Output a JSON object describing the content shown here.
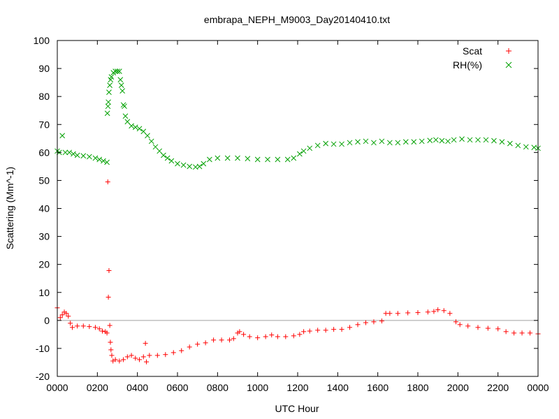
{
  "chart_data": {
    "type": "scatter",
    "title": "embrapa_NEPH_M9003_Day20140410.txt",
    "xlabel": "UTC Hour",
    "ylabel": "Scattering (Mm^-1)",
    "xlim": [
      0,
      2400
    ],
    "ylim": [
      -20,
      100
    ],
    "x_tick_labels": [
      "0000",
      "0200",
      "0400",
      "0600",
      "0800",
      "1000",
      "1200",
      "1400",
      "1600",
      "1800",
      "2000",
      "2200",
      "0000"
    ],
    "y_tick_labels": [
      "-20",
      "-10",
      "0",
      "10",
      "20",
      "30",
      "40",
      "50",
      "60",
      "70",
      "80",
      "90",
      "100"
    ],
    "grid": false,
    "zero_line": true,
    "legend_position": "top-right",
    "series": [
      {
        "name": "Scat",
        "marker": "+",
        "color": "#ff0000",
        "points": [
          [
            0,
            4.5
          ],
          [
            15,
            1
          ],
          [
            25,
            2
          ],
          [
            35,
            3
          ],
          [
            45,
            2.5
          ],
          [
            55,
            1.5
          ],
          [
            65,
            -1
          ],
          [
            75,
            -2.5
          ],
          [
            100,
            -2
          ],
          [
            130,
            -2
          ],
          [
            160,
            -2.2
          ],
          [
            190,
            -2.5
          ],
          [
            210,
            -3
          ],
          [
            225,
            -3.8
          ],
          [
            240,
            -4
          ],
          [
            248,
            -4.5
          ],
          [
            252,
            49.5
          ],
          [
            255,
            8.3
          ],
          [
            258,
            17.8
          ],
          [
            262,
            -1.8
          ],
          [
            265,
            -7.8
          ],
          [
            268,
            -10.5
          ],
          [
            272,
            -12.5
          ],
          [
            278,
            -14.5
          ],
          [
            290,
            -14
          ],
          [
            310,
            -14.5
          ],
          [
            330,
            -14
          ],
          [
            350,
            -13
          ],
          [
            370,
            -12.5
          ],
          [
            390,
            -13.5
          ],
          [
            410,
            -14
          ],
          [
            430,
            -13
          ],
          [
            440,
            -8.2
          ],
          [
            445,
            -14.8
          ],
          [
            460,
            -12.5
          ],
          [
            500,
            -12.5
          ],
          [
            540,
            -12.2
          ],
          [
            580,
            -11.5
          ],
          [
            620,
            -10.8
          ],
          [
            660,
            -9.5
          ],
          [
            700,
            -8.5
          ],
          [
            740,
            -8
          ],
          [
            780,
            -7
          ],
          [
            820,
            -7
          ],
          [
            860,
            -7
          ],
          [
            880,
            -6.5
          ],
          [
            900,
            -4.5
          ],
          [
            910,
            -4
          ],
          [
            930,
            -5
          ],
          [
            960,
            -5.8
          ],
          [
            1000,
            -6.2
          ],
          [
            1040,
            -5.8
          ],
          [
            1070,
            -5.2
          ],
          [
            1100,
            -5.8
          ],
          [
            1140,
            -5.8
          ],
          [
            1180,
            -5.5
          ],
          [
            1210,
            -5
          ],
          [
            1230,
            -4
          ],
          [
            1260,
            -3.8
          ],
          [
            1300,
            -3.5
          ],
          [
            1340,
            -3.5
          ],
          [
            1380,
            -3.2
          ],
          [
            1420,
            -3.2
          ],
          [
            1460,
            -2.5
          ],
          [
            1500,
            -1.5
          ],
          [
            1540,
            -0.8
          ],
          [
            1580,
            -0.5
          ],
          [
            1620,
            -0.2
          ],
          [
            1640,
            2.5
          ],
          [
            1660,
            2.5
          ],
          [
            1700,
            2.5
          ],
          [
            1750,
            2.7
          ],
          [
            1800,
            2.8
          ],
          [
            1850,
            3
          ],
          [
            1880,
            3.2
          ],
          [
            1900,
            3.8
          ],
          [
            1930,
            3.5
          ],
          [
            1960,
            2.5
          ],
          [
            1990,
            -0.5
          ],
          [
            2010,
            -1.5
          ],
          [
            2050,
            -2
          ],
          [
            2100,
            -2.5
          ],
          [
            2150,
            -2.8
          ],
          [
            2200,
            -3
          ],
          [
            2240,
            -4
          ],
          [
            2280,
            -4.5
          ],
          [
            2320,
            -4.5
          ],
          [
            2360,
            -4.5
          ],
          [
            2400,
            -4.8
          ]
        ]
      },
      {
        "name": "RH(%)",
        "marker": "x",
        "color": "#00a000",
        "points": [
          [
            0,
            60.5
          ],
          [
            10,
            60
          ],
          [
            25,
            66
          ],
          [
            40,
            60
          ],
          [
            60,
            60
          ],
          [
            80,
            59.5
          ],
          [
            100,
            59
          ],
          [
            130,
            58.8
          ],
          [
            160,
            58.5
          ],
          [
            190,
            58
          ],
          [
            210,
            57.5
          ],
          [
            230,
            57
          ],
          [
            248,
            56.5
          ],
          [
            250,
            74
          ],
          [
            253,
            76.5
          ],
          [
            255,
            78
          ],
          [
            258,
            81.5
          ],
          [
            262,
            84
          ],
          [
            266,
            86
          ],
          [
            270,
            87
          ],
          [
            280,
            88.5
          ],
          [
            290,
            89
          ],
          [
            300,
            89
          ],
          [
            310,
            89
          ],
          [
            315,
            86
          ],
          [
            320,
            84
          ],
          [
            325,
            82
          ],
          [
            330,
            77
          ],
          [
            335,
            76.5
          ],
          [
            340,
            73
          ],
          [
            350,
            71
          ],
          [
            370,
            69.5
          ],
          [
            390,
            69
          ],
          [
            410,
            68.5
          ],
          [
            430,
            67.5
          ],
          [
            450,
            66
          ],
          [
            470,
            64
          ],
          [
            490,
            62
          ],
          [
            510,
            60.5
          ],
          [
            530,
            59
          ],
          [
            550,
            58
          ],
          [
            570,
            57
          ],
          [
            600,
            56
          ],
          [
            630,
            55.5
          ],
          [
            660,
            55
          ],
          [
            690,
            54.8
          ],
          [
            710,
            55
          ],
          [
            730,
            56
          ],
          [
            760,
            57.5
          ],
          [
            800,
            58
          ],
          [
            850,
            58
          ],
          [
            900,
            58
          ],
          [
            950,
            57.8
          ],
          [
            1000,
            57.5
          ],
          [
            1050,
            57.5
          ],
          [
            1100,
            57.5
          ],
          [
            1150,
            57.5
          ],
          [
            1180,
            58
          ],
          [
            1210,
            59.5
          ],
          [
            1230,
            60.5
          ],
          [
            1260,
            61.5
          ],
          [
            1300,
            62.5
          ],
          [
            1340,
            63.2
          ],
          [
            1380,
            63
          ],
          [
            1420,
            63
          ],
          [
            1460,
            63.5
          ],
          [
            1500,
            63.8
          ],
          [
            1540,
            64
          ],
          [
            1580,
            63.5
          ],
          [
            1620,
            64
          ],
          [
            1660,
            63.5
          ],
          [
            1700,
            63.5
          ],
          [
            1740,
            63.8
          ],
          [
            1780,
            63.8
          ],
          [
            1820,
            64
          ],
          [
            1860,
            64.3
          ],
          [
            1890,
            64.5
          ],
          [
            1920,
            64.2
          ],
          [
            1950,
            64
          ],
          [
            1980,
            64.5
          ],
          [
            2020,
            64.8
          ],
          [
            2060,
            64.5
          ],
          [
            2100,
            64.5
          ],
          [
            2140,
            64.5
          ],
          [
            2180,
            64.2
          ],
          [
            2220,
            63.8
          ],
          [
            2260,
            63.2
          ],
          [
            2300,
            62.5
          ],
          [
            2340,
            62
          ],
          [
            2380,
            61.8
          ],
          [
            2400,
            61.5
          ]
        ]
      }
    ]
  }
}
